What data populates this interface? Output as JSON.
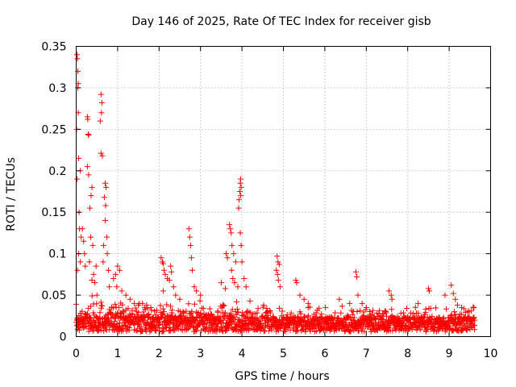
{
  "chart_data": {
    "type": "scatter",
    "title": "Day 146 of 2025, Rate Of TEC Index for receiver gisb",
    "xlabel": "GPS time / hours",
    "ylabel": "ROTI / TECUs",
    "xlim": [
      0,
      10
    ],
    "ylim": [
      0,
      0.35
    ],
    "xticks": [
      0,
      1,
      2,
      3,
      4,
      5,
      6,
      7,
      8,
      9,
      10
    ],
    "xtick_labels": [
      "0",
      "1",
      "2",
      "3",
      "4",
      "5",
      "6",
      "7",
      "8",
      "9",
      "10"
    ],
    "yticks": [
      0,
      0.05,
      0.1,
      0.15,
      0.2,
      0.25,
      0.3,
      0.35
    ],
    "ytick_labels": [
      "0",
      "0.05",
      "0.1",
      "0.15",
      "0.2",
      "0.25",
      "0.3",
      "0.35"
    ],
    "grid": true,
    "marker": "plus",
    "color": "#ff0000",
    "series": [
      {
        "name": "ROTI",
        "x_range": [
          0,
          9.62
        ],
        "baseline_points": 1700,
        "points": [
          [
            0.02,
            0.34
          ],
          [
            0.03,
            0.335
          ],
          [
            0.04,
            0.32
          ],
          [
            0.05,
            0.305
          ],
          [
            0.04,
            0.3
          ],
          [
            0.05,
            0.27
          ],
          [
            0.01,
            0.25
          ],
          [
            0.02,
            0.19
          ],
          [
            0.06,
            0.215
          ],
          [
            0.1,
            0.2
          ],
          [
            0.07,
            0.15
          ],
          [
            0.08,
            0.13
          ],
          [
            0.12,
            0.12
          ],
          [
            0.15,
            0.13
          ],
          [
            0.18,
            0.115
          ],
          [
            0.03,
            0.08
          ],
          [
            0.06,
            0.1
          ],
          [
            0.1,
            0.09
          ],
          [
            0.2,
            0.1
          ],
          [
            0.22,
            0.085
          ],
          [
            0.27,
            0.265
          ],
          [
            0.28,
            0.262
          ],
          [
            0.29,
            0.244
          ],
          [
            0.3,
            0.243
          ],
          [
            0.27,
            0.205
          ],
          [
            0.3,
            0.195
          ],
          [
            0.33,
            0.155
          ],
          [
            0.36,
            0.17
          ],
          [
            0.38,
            0.18
          ],
          [
            0.35,
            0.12
          ],
          [
            0.4,
            0.11
          ],
          [
            0.32,
            0.09
          ],
          [
            0.42,
            0.075
          ],
          [
            0.45,
            0.065
          ],
          [
            0.38,
            0.068
          ],
          [
            0.48,
            0.085
          ],
          [
            0.5,
            0.05
          ],
          [
            0.6,
            0.292
          ],
          [
            0.62,
            0.282
          ],
          [
            0.61,
            0.27
          ],
          [
            0.58,
            0.26
          ],
          [
            0.6,
            0.221
          ],
          [
            0.63,
            0.218
          ],
          [
            0.7,
            0.185
          ],
          [
            0.72,
            0.18
          ],
          [
            0.68,
            0.168
          ],
          [
            0.71,
            0.158
          ],
          [
            0.7,
            0.14
          ],
          [
            0.74,
            0.12
          ],
          [
            0.66,
            0.11
          ],
          [
            0.75,
            0.1
          ],
          [
            0.78,
            0.08
          ],
          [
            0.65,
            0.09
          ],
          [
            0.8,
            0.06
          ],
          [
            0.9,
            0.07
          ],
          [
            0.95,
            0.075
          ],
          [
            1.0,
            0.085
          ],
          [
            1.05,
            0.08
          ],
          [
            0.98,
            0.06
          ],
          [
            1.1,
            0.055
          ],
          [
            1.2,
            0.05
          ],
          [
            1.3,
            0.045
          ],
          [
            1.4,
            0.04
          ],
          [
            1.5,
            0.038
          ],
          [
            1.6,
            0.04
          ],
          [
            1.7,
            0.038
          ],
          [
            1.8,
            0.035
          ],
          [
            2.05,
            0.095
          ],
          [
            2.08,
            0.09
          ],
          [
            2.1,
            0.088
          ],
          [
            2.12,
            0.08
          ],
          [
            2.15,
            0.075
          ],
          [
            2.2,
            0.07
          ],
          [
            2.25,
            0.068
          ],
          [
            2.28,
            0.085
          ],
          [
            2.3,
            0.078
          ],
          [
            2.35,
            0.06
          ],
          [
            2.1,
            0.055
          ],
          [
            2.4,
            0.05
          ],
          [
            2.5,
            0.045
          ],
          [
            2.72,
            0.13
          ],
          [
            2.74,
            0.12
          ],
          [
            2.76,
            0.11
          ],
          [
            2.78,
            0.095
          ],
          [
            2.8,
            0.08
          ],
          [
            2.85,
            0.06
          ],
          [
            2.9,
            0.055
          ],
          [
            3.0,
            0.05
          ],
          [
            3.5,
            0.065
          ],
          [
            3.6,
            0.058
          ],
          [
            3.62,
            0.1
          ],
          [
            3.65,
            0.095
          ],
          [
            3.7,
            0.135
          ],
          [
            3.72,
            0.13
          ],
          [
            3.74,
            0.125
          ],
          [
            3.76,
            0.11
          ],
          [
            3.8,
            0.1
          ],
          [
            3.85,
            0.09
          ],
          [
            3.75,
            0.08
          ],
          [
            3.78,
            0.07
          ],
          [
            3.82,
            0.065
          ],
          [
            3.9,
            0.06
          ],
          [
            3.92,
            0.155
          ],
          [
            3.93,
            0.165
          ],
          [
            3.95,
            0.175
          ],
          [
            3.96,
            0.185
          ],
          [
            3.97,
            0.19
          ],
          [
            3.98,
            0.18
          ],
          [
            3.97,
            0.17
          ],
          [
            3.96,
            0.125
          ],
          [
            3.98,
            0.11
          ],
          [
            4.0,
            0.09
          ],
          [
            4.05,
            0.07
          ],
          [
            4.1,
            0.06
          ],
          [
            4.85,
            0.097
          ],
          [
            4.87,
            0.09
          ],
          [
            4.9,
            0.087
          ],
          [
            4.83,
            0.08
          ],
          [
            4.86,
            0.075
          ],
          [
            4.88,
            0.068
          ],
          [
            4.92,
            0.06
          ],
          [
            5.3,
            0.068
          ],
          [
            5.32,
            0.065
          ],
          [
            5.4,
            0.05
          ],
          [
            5.5,
            0.045
          ],
          [
            5.6,
            0.04
          ],
          [
            6.35,
            0.045
          ],
          [
            6.6,
            0.04
          ],
          [
            6.75,
            0.078
          ],
          [
            6.77,
            0.072
          ],
          [
            6.8,
            0.05
          ],
          [
            6.9,
            0.04
          ],
          [
            7.0,
            0.035
          ],
          [
            7.55,
            0.055
          ],
          [
            7.6,
            0.05
          ],
          [
            7.62,
            0.045
          ],
          [
            8.25,
            0.04
          ],
          [
            8.5,
            0.058
          ],
          [
            8.52,
            0.055
          ],
          [
            8.9,
            0.05
          ],
          [
            9.05,
            0.062
          ],
          [
            9.1,
            0.052
          ],
          [
            9.15,
            0.045
          ],
          [
            9.2,
            0.038
          ],
          [
            9.3,
            0.035
          ],
          [
            9.6,
            0.035
          ]
        ]
      }
    ]
  }
}
